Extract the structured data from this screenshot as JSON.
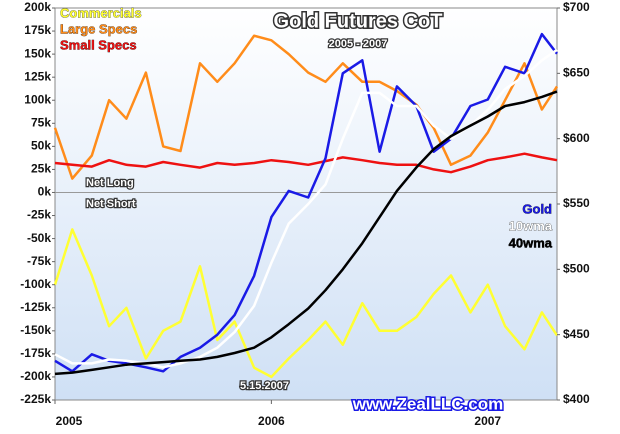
{
  "chart_data": {
    "type": "line",
    "title": "Gold Futures CoT",
    "subtitle": "2005 - 2007",
    "annotations": [
      "Net Long",
      "Net Short",
      "5.15.2007",
      "www.ZealLLC.com"
    ],
    "x": [
      2005.0,
      2005.08,
      2005.17,
      2005.25,
      2005.33,
      2005.42,
      2005.5,
      2005.58,
      2005.67,
      2005.75,
      2005.83,
      2005.92,
      2006.0,
      2006.08,
      2006.17,
      2006.25,
      2006.33,
      2006.42,
      2006.5,
      2006.58,
      2006.67,
      2006.75,
      2006.83,
      2006.92,
      2007.0,
      2007.08,
      2007.17,
      2007.25,
      2007.32
    ],
    "xlim": [
      2005,
      2007.32
    ],
    "xticks": [
      2005,
      2006,
      2007
    ],
    "ylim": [
      -225000,
      200000
    ],
    "yticks": [
      {
        "value": -225000,
        "label": "-225k"
      },
      {
        "value": -200000,
        "label": "-200k"
      },
      {
        "value": -175000,
        "label": "-175k"
      },
      {
        "value": -150000,
        "label": "-150k"
      },
      {
        "value": -125000,
        "label": "-125k"
      },
      {
        "value": -100000,
        "label": "-100k"
      },
      {
        "value": -75000,
        "label": "-75k"
      },
      {
        "value": -50000,
        "label": "-50k"
      },
      {
        "value": -25000,
        "label": "-25k"
      },
      {
        "value": 0,
        "label": "0k"
      },
      {
        "value": 25000,
        "label": "25k"
      },
      {
        "value": 50000,
        "label": "50k"
      },
      {
        "value": 75000,
        "label": "75k"
      },
      {
        "value": 100000,
        "label": "100k"
      },
      {
        "value": 125000,
        "label": "125k"
      },
      {
        "value": 150000,
        "label": "150k"
      },
      {
        "value": 175000,
        "label": "175k"
      },
      {
        "value": 200000,
        "label": "200k"
      }
    ],
    "y2lim": [
      400,
      700
    ],
    "y2ticks": [
      {
        "value": 400,
        "label": "$400"
      },
      {
        "value": 450,
        "label": "$450"
      },
      {
        "value": 500,
        "label": "$500"
      },
      {
        "value": 550,
        "label": "$550"
      },
      {
        "value": 600,
        "label": "$600"
      },
      {
        "value": 650,
        "label": "$650"
      },
      {
        "value": 700,
        "label": "$700"
      }
    ],
    "grid": false,
    "series": [
      {
        "name": "Commercials",
        "color": "#ffff33",
        "values": [
          -100000,
          -40000,
          -90000,
          -145000,
          -125000,
          -180000,
          -150000,
          -140000,
          -80000,
          -160000,
          -140000,
          -190000,
          -200000,
          -180000,
          -160000,
          -140000,
          -165000,
          -120000,
          -150000,
          -150000,
          -135000,
          -110000,
          -90000,
          -130000,
          -100000,
          -145000,
          -170000,
          -130000,
          -155000
        ]
      },
      {
        "name": "Large Specs",
        "color": "#ff8c1a",
        "values": [
          70000,
          15000,
          40000,
          100000,
          80000,
          130000,
          50000,
          45000,
          140000,
          120000,
          140000,
          170000,
          165000,
          150000,
          130000,
          120000,
          140000,
          120000,
          120000,
          110000,
          95000,
          70000,
          30000,
          40000,
          65000,
          100000,
          140000,
          90000,
          115000
        ]
      },
      {
        "name": "Small Specs",
        "color": "#ee1111",
        "values": [
          32000,
          30000,
          28000,
          35000,
          30000,
          28000,
          33000,
          30000,
          27000,
          32000,
          30000,
          32000,
          35000,
          33000,
          30000,
          34000,
          38000,
          35000,
          32000,
          30000,
          30000,
          25000,
          22000,
          28000,
          35000,
          38000,
          42000,
          38000,
          35000
        ]
      },
      {
        "name": "Gold",
        "color": "#1a1ae6",
        "axis": "y2",
        "values": [
          430,
          422,
          435,
          430,
          428,
          425,
          422,
          433,
          440,
          450,
          465,
          495,
          540,
          560,
          555,
          585,
          650,
          660,
          590,
          640,
          625,
          590,
          600,
          625,
          630,
          655,
          650,
          680,
          665
        ]
      },
      {
        "name": "10wma",
        "color": "#ffffff",
        "axis": "y2",
        "values": [
          435,
          428,
          428,
          431,
          430,
          428,
          425,
          428,
          433,
          440,
          452,
          472,
          505,
          535,
          550,
          565,
          600,
          635,
          635,
          625,
          625,
          610,
          600,
          610,
          622,
          638,
          648,
          660,
          668
        ]
      },
      {
        "name": "40wma",
        "color": "#000000",
        "axis": "y2",
        "values": [
          420,
          421,
          423,
          425,
          427,
          428,
          429,
          430,
          431,
          433,
          436,
          440,
          448,
          458,
          470,
          484,
          500,
          520,
          540,
          560,
          578,
          592,
          602,
          610,
          617,
          625,
          628,
          632,
          636
        ]
      }
    ]
  }
}
